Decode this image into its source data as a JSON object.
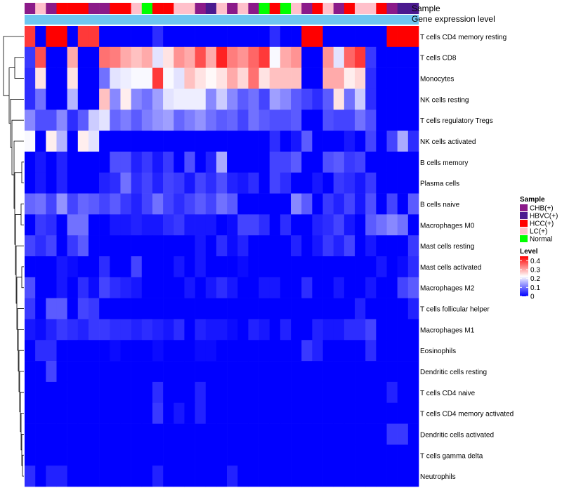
{
  "chart_data": {
    "type": "heatmap",
    "title": "",
    "annotation_tracks": [
      "Sample",
      "Gene expression level"
    ],
    "sample_groups": [
      "CHB(+)",
      "HBVC(+)",
      "HCC(+)",
      "LC(+)",
      "Normal"
    ],
    "sample_group_colors": {
      "CHB(+)": "#8B1A89",
      "HBVC(+)": "#4B1A8F",
      "HCC(+)": "#FF0000",
      "LC(+)": "#FFC0CB",
      "Normal": "#00FF00"
    },
    "sample_annotation": [
      "CHB(+)",
      "LC(+)",
      "CHB(+)",
      "HCC(+)",
      "HCC(+)",
      "HCC(+)",
      "CHB(+)",
      "CHB(+)",
      "HCC(+)",
      "HCC(+)",
      "LC(+)",
      "Normal",
      "HCC(+)",
      "HCC(+)",
      "LC(+)",
      "LC(+)",
      "CHB(+)",
      "HBVC(+)",
      "LC(+)",
      "CHB(+)",
      "LC(+)",
      "CHB(+)",
      "Normal",
      "HCC(+)",
      "Normal",
      "LC(+)",
      "CHB(+)",
      "HCC(+)",
      "LC(+)",
      "CHB(+)",
      "HCC(+)",
      "LC(+)",
      "LC(+)",
      "HCC(+)",
      "CHB(+)",
      "HBVC(+)",
      "HBVC(+)"
    ],
    "gene_expression_level_color": "#6EC6F0",
    "rows": [
      "T cells CD4 memory resting",
      "T cells CD8",
      "Monocytes",
      "NK cells resting",
      "T cells regulatory  Tregs",
      "NK cells activated",
      "B cells memory",
      "Plasma cells",
      "B cells naive",
      "Macrophages M0",
      "Mast cells resting",
      "Mast cells activated",
      "Macrophages M2",
      "T cells follicular helper",
      "Macrophages M1",
      "Eosinophils",
      "Dendritic cells resting",
      "T cells CD4 naive",
      "T cells CD4 memory activated",
      "Dendritic cells activated",
      "T cells gamma delta",
      "Neutrophils"
    ],
    "values": [
      [
        0.4,
        0.0,
        0.45,
        0.45,
        0.0,
        0.4,
        0.4,
        0.0,
        0.0,
        0.0,
        0.0,
        0.0,
        0.04,
        0.0,
        0.0,
        0.0,
        0.0,
        0.0,
        0.0,
        0.0,
        0.0,
        0.0,
        0.0,
        0.04,
        0.0,
        0.0,
        0.45,
        0.45,
        0.0,
        0.0,
        0.0,
        0.0,
        0.0,
        0.0,
        0.45,
        0.45,
        0.45
      ],
      [
        0.05,
        0.38,
        0.0,
        0.0,
        0.3,
        0.0,
        0.0,
        0.35,
        0.34,
        0.3,
        0.28,
        0.3,
        0.2,
        0.25,
        0.32,
        0.3,
        0.38,
        0.3,
        0.42,
        0.34,
        0.32,
        0.36,
        0.4,
        0.22,
        0.3,
        0.32,
        0.0,
        0.0,
        0.32,
        0.2,
        0.36,
        0.4,
        0.05,
        0.0,
        0.0,
        0.0,
        0.0
      ],
      [
        0.04,
        0.25,
        0.0,
        0.0,
        0.25,
        0.0,
        0.0,
        0.1,
        0.2,
        0.21,
        0.22,
        0.22,
        0.4,
        0.22,
        0.2,
        0.28,
        0.25,
        0.23,
        0.25,
        0.3,
        0.26,
        0.35,
        0.25,
        0.28,
        0.28,
        0.28,
        0.0,
        0.0,
        0.3,
        0.3,
        0.24,
        0.26,
        0.04,
        0.0,
        0.0,
        0.0,
        0.0
      ],
      [
        0.04,
        0.1,
        0.0,
        0.0,
        0.16,
        0.0,
        0.0,
        0.28,
        0.12,
        0.24,
        0.12,
        0.1,
        0.14,
        0.2,
        0.21,
        0.21,
        0.21,
        0.12,
        0.18,
        0.12,
        0.08,
        0.1,
        0.06,
        0.14,
        0.12,
        0.08,
        0.06,
        0.04,
        0.08,
        0.25,
        0.1,
        0.18,
        0.04,
        0.0,
        0.0,
        0.0,
        0.0
      ],
      [
        0.12,
        0.07,
        0.07,
        0.12,
        0.04,
        0.08,
        0.18,
        0.2,
        0.09,
        0.11,
        0.08,
        0.11,
        0.13,
        0.14,
        0.09,
        0.11,
        0.13,
        0.1,
        0.08,
        0.09,
        0.06,
        0.1,
        0.08,
        0.07,
        0.07,
        0.08,
        0.0,
        0.0,
        0.07,
        0.06,
        0.06,
        0.1,
        0.07,
        0.0,
        0.0,
        0.0,
        0.0
      ],
      [
        0.22,
        0.0,
        0.24,
        0.16,
        0.0,
        0.24,
        0.2,
        0.0,
        0.0,
        0.0,
        0.0,
        0.0,
        0.0,
        0.0,
        0.0,
        0.0,
        0.0,
        0.0,
        0.0,
        0.0,
        0.0,
        0.0,
        0.0,
        0.04,
        0.0,
        0.02,
        0.08,
        0.0,
        0.0,
        0.0,
        0.02,
        0.0,
        0.06,
        0.0,
        0.06,
        0.15,
        0.04
      ],
      [
        0.0,
        0.02,
        0.0,
        0.03,
        0.0,
        0.0,
        0.0,
        0.0,
        0.07,
        0.07,
        0.03,
        0.05,
        0.02,
        0.05,
        0.0,
        0.07,
        0.0,
        0.03,
        0.15,
        0.0,
        0.0,
        0.0,
        0.0,
        0.06,
        0.06,
        0.08,
        0.0,
        0.0,
        0.07,
        0.08,
        0.05,
        0.06,
        0.0,
        0.0,
        0.0,
        0.0,
        0.0
      ],
      [
        0.0,
        0.02,
        0.0,
        0.03,
        0.0,
        0.0,
        0.0,
        0.03,
        0.04,
        0.1,
        0.04,
        0.06,
        0.03,
        0.06,
        0.05,
        0.02,
        0.06,
        0.04,
        0.07,
        0.03,
        0.02,
        0.04,
        0.0,
        0.06,
        0.04,
        0.0,
        0.0,
        0.02,
        0.0,
        0.05,
        0.04,
        0.02,
        0.05,
        0.0,
        0.0,
        0.0,
        0.0
      ],
      [
        0.09,
        0.1,
        0.06,
        0.13,
        0.06,
        0.09,
        0.08,
        0.06,
        0.08,
        0.05,
        0.03,
        0.06,
        0.1,
        0.06,
        0.04,
        0.06,
        0.08,
        0.06,
        0.1,
        0.08,
        0.0,
        0.0,
        0.0,
        0.0,
        0.0,
        0.12,
        0.08,
        0.0,
        0.05,
        0.03,
        0.06,
        0.02,
        0.07,
        0.0,
        0.06,
        0.0,
        0.08
      ],
      [
        0.0,
        0.05,
        0.04,
        0.0,
        0.1,
        0.1,
        0.0,
        0.0,
        0.02,
        0.02,
        0.03,
        0.02,
        0.02,
        0.04,
        0.05,
        0.02,
        0.02,
        0.02,
        0.0,
        0.01,
        0.06,
        0.06,
        0.04,
        0.0,
        0.04,
        0.0,
        0.0,
        0.03,
        0.04,
        0.06,
        0.02,
        0.0,
        0.08,
        0.1,
        0.12,
        0.1,
        0.0
      ],
      [
        0.06,
        0.04,
        0.06,
        0.0,
        0.05,
        0.08,
        0.0,
        0.0,
        0.0,
        0.0,
        0.0,
        0.0,
        0.0,
        0.0,
        0.0,
        0.0,
        0.02,
        0.0,
        0.04,
        0.01,
        0.03,
        0.0,
        0.0,
        0.0,
        0.0,
        0.03,
        0.0,
        0.02,
        0.05,
        0.03,
        0.06,
        0.0,
        0.02,
        0.0,
        0.0,
        0.0,
        0.05
      ],
      [
        0.0,
        0.0,
        0.0,
        0.02,
        0.01,
        0.0,
        0.0,
        0.04,
        0.0,
        0.0,
        0.06,
        0.0,
        0.0,
        0.0,
        0.02,
        0.0,
        0.02,
        0.0,
        0.0,
        0.0,
        0.01,
        0.0,
        0.0,
        0.0,
        0.0,
        0.0,
        0.0,
        0.0,
        0.0,
        0.0,
        0.0,
        0.0,
        0.0,
        0.02,
        0.0,
        0.01,
        0.04
      ],
      [
        0.07,
        0.0,
        0.0,
        0.02,
        0.0,
        0.04,
        0.01,
        0.06,
        0.04,
        0.03,
        0.02,
        0.0,
        0.0,
        0.0,
        0.0,
        0.02,
        0.0,
        0.02,
        0.04,
        0.02,
        0.0,
        0.0,
        0.02,
        0.02,
        0.0,
        0.0,
        0.04,
        0.0,
        0.0,
        0.02,
        0.0,
        0.0,
        0.02,
        0.0,
        0.0,
        0.06,
        0.08
      ],
      [
        0.05,
        0.0,
        0.08,
        0.08,
        0.0,
        0.06,
        0.05,
        0.0,
        0.0,
        0.0,
        0.0,
        0.0,
        0.0,
        0.0,
        0.0,
        0.0,
        0.0,
        0.0,
        0.0,
        0.0,
        0.0,
        0.0,
        0.0,
        0.0,
        0.0,
        0.0,
        0.0,
        0.0,
        0.0,
        0.0,
        0.0,
        0.03,
        0.0,
        0.0,
        0.0,
        0.0,
        0.03
      ],
      [
        0.02,
        0.01,
        0.03,
        0.05,
        0.04,
        0.03,
        0.05,
        0.05,
        0.04,
        0.04,
        0.03,
        0.04,
        0.03,
        0.02,
        0.04,
        0.0,
        0.03,
        0.02,
        0.02,
        0.01,
        0.0,
        0.03,
        0.02,
        0.0,
        0.03,
        0.0,
        0.0,
        0.03,
        0.02,
        0.02,
        0.04,
        0.04,
        0.06,
        0.0,
        0.0,
        0.0,
        0.0
      ],
      [
        0.0,
        0.04,
        0.04,
        0.0,
        0.0,
        0.0,
        0.0,
        0.0,
        0.01,
        0.0,
        0.0,
        0.0,
        0.01,
        0.0,
        0.0,
        0.0,
        0.01,
        0.01,
        0.0,
        0.0,
        0.0,
        0.0,
        0.0,
        0.0,
        0.0,
        0.0,
        0.05,
        0.03,
        0.0,
        0.0,
        0.0,
        0.0,
        0.04,
        0.0,
        0.0,
        0.0,
        0.0
      ],
      [
        0.0,
        0.0,
        0.06,
        0.0,
        0.0,
        0.0,
        0.0,
        0.0,
        0.0,
        0.0,
        0.0,
        0.0,
        0.0,
        0.0,
        0.0,
        0.0,
        0.0,
        0.0,
        0.0,
        0.0,
        0.0,
        0.0,
        0.0,
        0.0,
        0.0,
        0.0,
        0.0,
        0.0,
        0.0,
        0.0,
        0.0,
        0.0,
        0.0,
        0.0,
        0.0,
        0.0,
        0.0
      ],
      [
        0.0,
        0.0,
        0.0,
        0.0,
        0.0,
        0.0,
        0.0,
        0.0,
        0.0,
        0.0,
        0.0,
        0.0,
        0.04,
        0.0,
        0.0,
        0.0,
        0.03,
        0.0,
        0.0,
        0.0,
        0.0,
        0.0,
        0.0,
        0.0,
        0.0,
        0.0,
        0.0,
        0.0,
        0.0,
        0.0,
        0.0,
        0.0,
        0.0,
        0.0,
        0.03,
        0.0,
        0.0
      ],
      [
        0.0,
        0.0,
        0.0,
        0.0,
        0.0,
        0.0,
        0.0,
        0.0,
        0.0,
        0.0,
        0.0,
        0.0,
        0.05,
        0.0,
        0.02,
        0.0,
        0.03,
        0.0,
        0.0,
        0.0,
        0.0,
        0.0,
        0.0,
        0.0,
        0.0,
        0.0,
        0.0,
        0.0,
        0.0,
        0.0,
        0.0,
        0.0,
        0.0,
        0.0,
        0.0,
        0.0,
        0.0
      ],
      [
        0.0,
        0.0,
        0.0,
        0.0,
        0.0,
        0.0,
        0.0,
        0.0,
        0.0,
        0.0,
        0.0,
        0.0,
        0.0,
        0.0,
        0.0,
        0.0,
        0.0,
        0.0,
        0.0,
        0.0,
        0.0,
        0.0,
        0.0,
        0.0,
        0.0,
        0.0,
        0.0,
        0.0,
        0.0,
        0.0,
        0.0,
        0.0,
        0.0,
        0.0,
        0.05,
        0.05,
        0.0
      ],
      [
        0.0,
        0.0,
        0.0,
        0.0,
        0.0,
        0.0,
        0.0,
        0.0,
        0.0,
        0.0,
        0.0,
        0.0,
        0.0,
        0.0,
        0.0,
        0.0,
        0.0,
        0.0,
        0.0,
        0.0,
        0.0,
        0.0,
        0.0,
        0.0,
        0.0,
        0.0,
        0.0,
        0.0,
        0.0,
        0.0,
        0.0,
        0.0,
        0.0,
        0.0,
        0.0,
        0.0,
        0.0
      ],
      [
        0.04,
        0.0,
        0.03,
        0.03,
        0.0,
        0.0,
        0.0,
        0.0,
        0.0,
        0.0,
        0.0,
        0.0,
        0.03,
        0.0,
        0.0,
        0.0,
        0.0,
        0.0,
        0.0,
        0.03,
        0.0,
        0.0,
        0.0,
        0.0,
        0.0,
        0.0,
        0.0,
        0.0,
        0.0,
        0.0,
        0.0,
        0.0,
        0.0,
        0.0,
        0.0,
        0.0,
        0.0
      ]
    ],
    "legend": {
      "sample_title": "Sample",
      "level_title": "Level",
      "level_ticks": [
        "0.4",
        "0.3",
        "0.2",
        "0.1",
        "0"
      ],
      "level_tick_values": [
        0.4,
        0.3,
        0.2,
        0.1,
        0
      ],
      "color_scale": {
        "min": 0,
        "max": 0.45,
        "low": "#0000FF",
        "mid": "#FFFFFF",
        "high": "#FF0000",
        "midpoint": 0.225
      },
      "placement": "right"
    }
  }
}
